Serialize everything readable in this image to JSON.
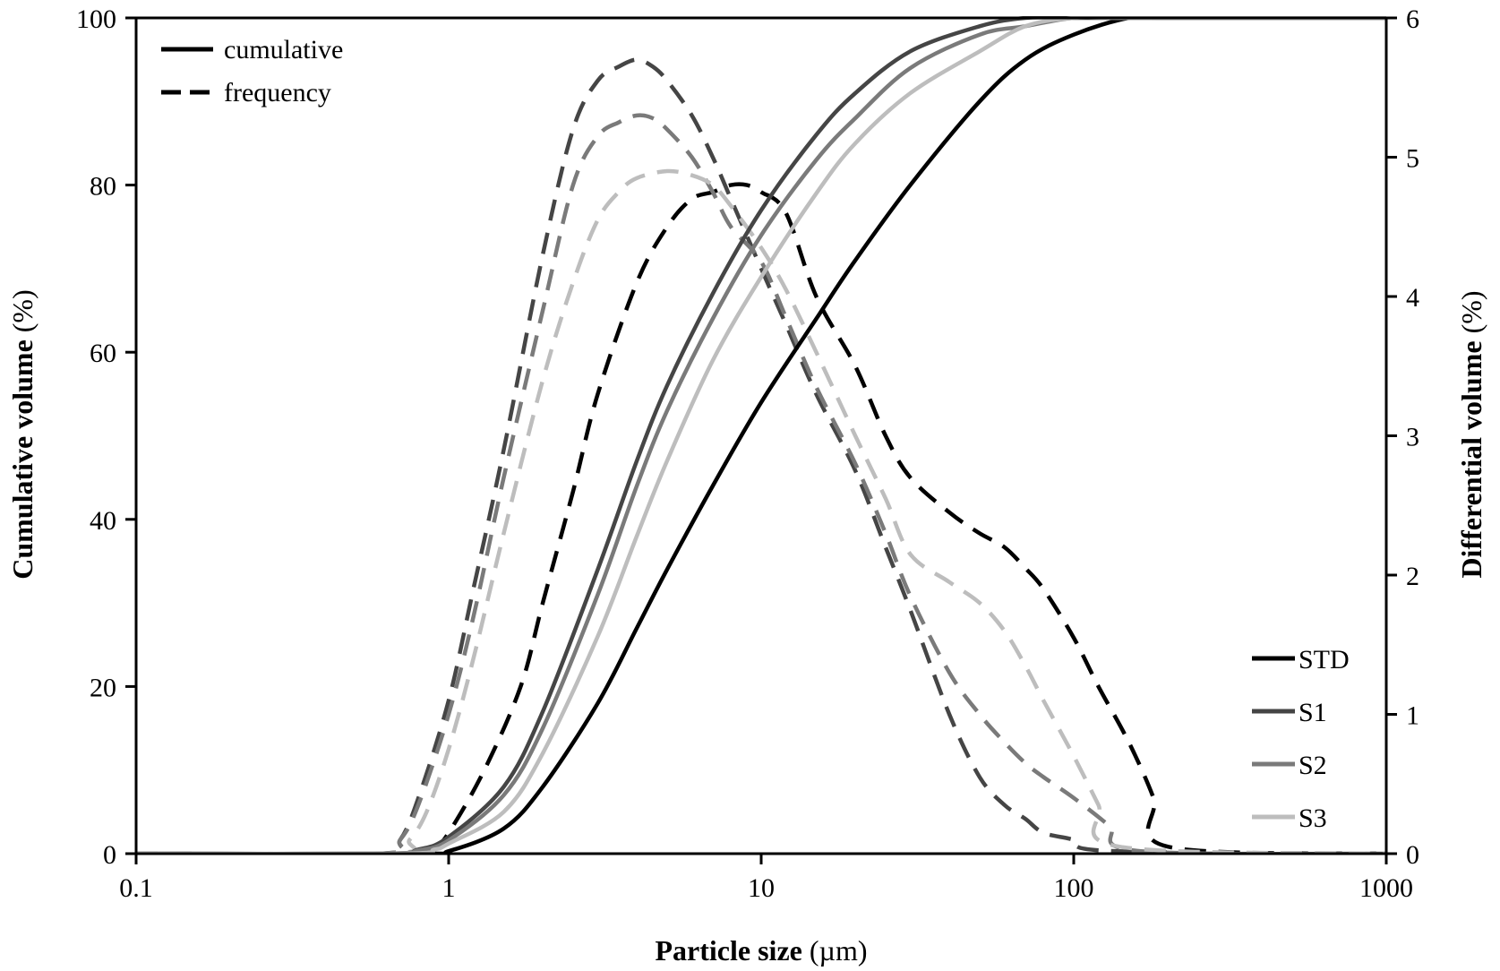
{
  "chart_data": {
    "type": "line",
    "title": "",
    "xlabel": "Particle size",
    "xlabel_unit": "(µm)",
    "ylabel": "Cumulative  volume",
    "ylabel_unit": "(%)",
    "y2label": "Differential volume",
    "y2label_unit": "(%)",
    "xscale": "log",
    "xlim": [
      0.1,
      1000
    ],
    "ylim": [
      0,
      100
    ],
    "y2lim": [
      0,
      6
    ],
    "grid": false,
    "x_ticks": [
      "0.1",
      "1",
      "10",
      "100",
      "1000"
    ],
    "y_ticks": [
      "0",
      "20",
      "40",
      "60",
      "80",
      "100"
    ],
    "y2_ticks": [
      "0",
      "1",
      "2",
      "3",
      "4",
      "5",
      "6"
    ],
    "style_legend": {
      "placement": "top-left",
      "entries": [
        "cumulative",
        "frequency"
      ]
    },
    "sample_legend": {
      "placement": "bottom-right",
      "entries": [
        "STD",
        "S1",
        "S2",
        "S3"
      ]
    },
    "series": [
      {
        "name": "STD",
        "kind": "cumulative",
        "axis": "left",
        "color": "#000000",
        "x": [
          0.1,
          0.8,
          1.0,
          1.5,
          2,
          3,
          4,
          5,
          7,
          10,
          15,
          20,
          30,
          50,
          70,
          100,
          150,
          200,
          1000
        ],
        "y": [
          0,
          0,
          0.3,
          3,
          8,
          18,
          27,
          34,
          44,
          54,
          64,
          71,
          80,
          90,
          95,
          98,
          100,
          100,
          100
        ]
      },
      {
        "name": "S1",
        "kind": "cumulative",
        "axis": "left",
        "color": "#454545",
        "x": [
          0.1,
          0.6,
          0.8,
          1.0,
          1.5,
          2,
          3,
          4,
          5,
          7,
          10,
          15,
          20,
          30,
          50,
          70,
          100,
          150,
          1000
        ],
        "y": [
          0,
          0,
          0.5,
          2,
          8,
          17,
          34,
          47,
          56,
          67,
          77,
          86,
          91,
          96,
          99,
          100,
          100,
          100,
          100
        ]
      },
      {
        "name": "S2",
        "kind": "cumulative",
        "axis": "left",
        "color": "#7a7a7a",
        "x": [
          0.1,
          0.6,
          0.8,
          1.0,
          1.5,
          2,
          3,
          4,
          5,
          7,
          10,
          15,
          20,
          30,
          50,
          70,
          100,
          150,
          1000
        ],
        "y": [
          0,
          0,
          0.4,
          1.6,
          7,
          15,
          31,
          44,
          53,
          64,
          74,
          83,
          88,
          94,
          98,
          99,
          100,
          100,
          100
        ]
      },
      {
        "name": "S3",
        "kind": "cumulative",
        "axis": "left",
        "color": "#bdbdbd",
        "x": [
          0.1,
          0.7,
          0.9,
          1.0,
          1.5,
          2,
          3,
          4,
          5,
          7,
          10,
          15,
          20,
          30,
          50,
          70,
          100,
          150,
          1000
        ],
        "y": [
          0,
          0,
          0.5,
          1.2,
          5,
          12,
          26,
          38,
          47,
          59,
          69,
          79,
          85,
          91,
          96,
          99,
          100,
          100,
          100
        ]
      },
      {
        "name": "STD",
        "kind": "frequency",
        "axis": "right",
        "color": "#000000",
        "x": [
          0.1,
          0.75,
          0.9,
          1.0,
          1.3,
          1.7,
          2,
          2.5,
          3,
          4,
          5,
          6,
          7,
          8,
          9,
          10,
          12,
          15,
          20,
          25,
          30,
          40,
          50,
          60,
          70,
          80,
          100,
          120,
          150,
          180,
          200,
          1000
        ],
        "y": [
          0,
          0,
          0.05,
          0.15,
          0.6,
          1.2,
          1.8,
          2.6,
          3.3,
          4.1,
          4.5,
          4.7,
          4.75,
          4.8,
          4.8,
          4.75,
          4.6,
          4.0,
          3.5,
          3.0,
          2.7,
          2.45,
          2.3,
          2.2,
          2.05,
          1.9,
          1.55,
          1.2,
          0.8,
          0.4,
          0.05,
          0
        ]
      },
      {
        "name": "S1",
        "kind": "frequency",
        "axis": "right",
        "color": "#454545",
        "x": [
          0.1,
          0.6,
          0.7,
          0.8,
          1.0,
          1.2,
          1.5,
          2,
          2.5,
          3,
          3.5,
          4,
          4.5,
          5,
          6,
          7,
          8,
          10,
          12,
          15,
          20,
          25,
          30,
          40,
          50,
          60,
          70,
          80,
          100,
          130,
          1000
        ],
        "y": [
          0,
          0,
          0.1,
          0.4,
          1.1,
          1.9,
          2.9,
          4.3,
          5.2,
          5.55,
          5.65,
          5.7,
          5.65,
          5.55,
          5.3,
          5.0,
          4.7,
          4.2,
          3.8,
          3.3,
          2.75,
          2.2,
          1.75,
          1.0,
          0.55,
          0.35,
          0.25,
          0.15,
          0.1,
          0.02,
          0
        ]
      },
      {
        "name": "S2",
        "kind": "frequency",
        "axis": "right",
        "color": "#7a7a7a",
        "x": [
          0.1,
          0.6,
          0.7,
          0.8,
          1.0,
          1.2,
          1.5,
          2,
          2.5,
          3,
          3.5,
          4,
          4.5,
          5,
          6,
          7,
          8,
          10,
          12,
          15,
          20,
          25,
          30,
          40,
          50,
          60,
          70,
          80,
          100,
          130,
          160,
          1000
        ],
        "y": [
          0,
          0,
          0.1,
          0.35,
          1.0,
          1.7,
          2.7,
          3.9,
          4.8,
          5.15,
          5.25,
          5.3,
          5.28,
          5.2,
          5.0,
          4.75,
          4.5,
          4.25,
          3.85,
          3.35,
          2.8,
          2.3,
          1.85,
          1.3,
          1.0,
          0.8,
          0.65,
          0.55,
          0.4,
          0.2,
          0.02,
          0
        ]
      },
      {
        "name": "S3",
        "kind": "frequency",
        "axis": "right",
        "color": "#bdbdbd",
        "x": [
          0.1,
          0.65,
          0.75,
          0.85,
          1.0,
          1.2,
          1.5,
          2,
          2.5,
          3,
          3.5,
          4,
          5,
          6,
          7,
          8,
          10,
          12,
          15,
          20,
          25,
          30,
          40,
          50,
          60,
          70,
          80,
          100,
          120,
          140,
          1000
        ],
        "y": [
          0,
          0,
          0.1,
          0.3,
          0.75,
          1.4,
          2.3,
          3.4,
          4.1,
          4.55,
          4.75,
          4.85,
          4.9,
          4.87,
          4.8,
          4.65,
          4.35,
          4.05,
          3.6,
          3.0,
          2.55,
          2.15,
          1.95,
          1.8,
          1.6,
          1.35,
          1.1,
          0.7,
          0.35,
          0.05,
          0
        ]
      }
    ]
  }
}
